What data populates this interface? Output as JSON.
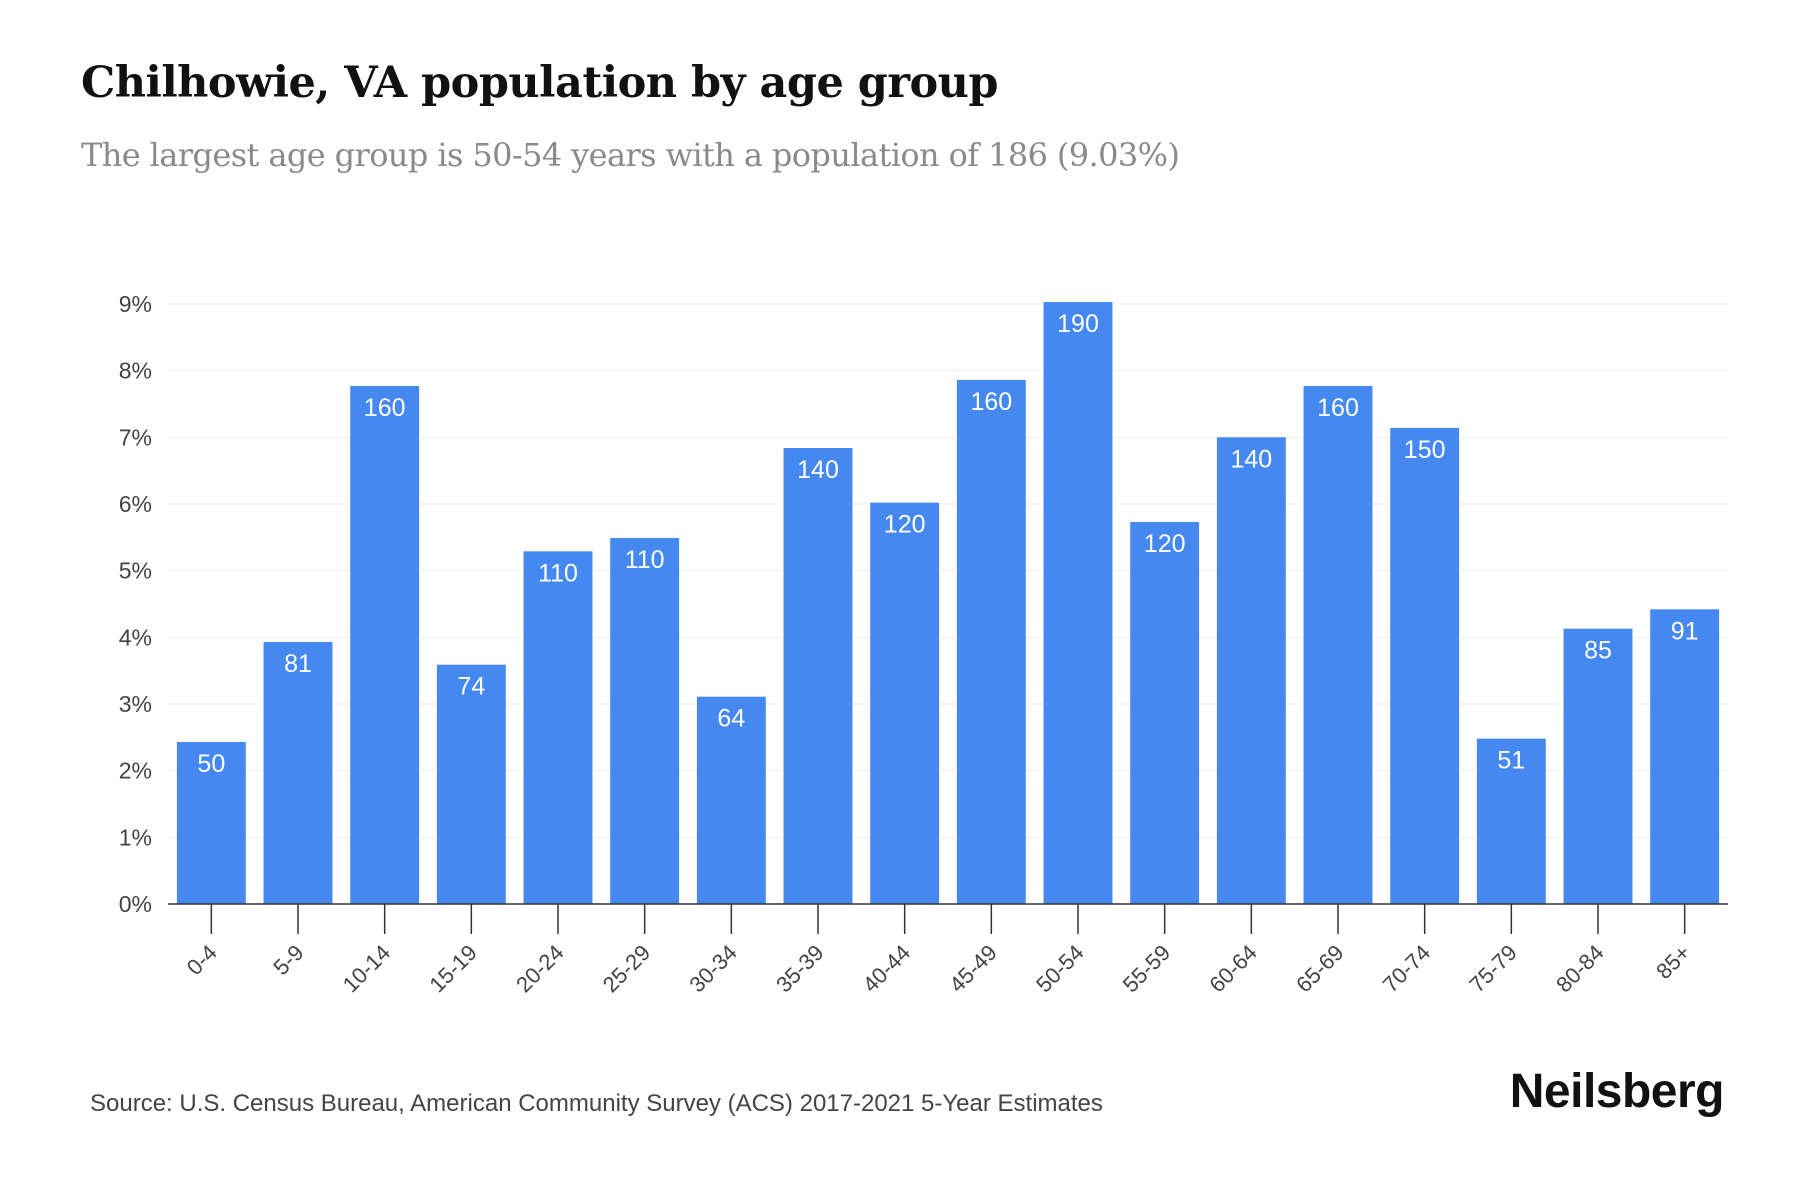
{
  "header": {
    "title": "Chilhowie, VA population by age group",
    "subtitle": "The largest age group is 50-54 years with a population of 186 (9.03%)"
  },
  "footer": {
    "source": "Source: U.S. Census Bureau, American Community Survey (ACS) 2017-2021 5-Year Estimates",
    "brand": "Neilsberg"
  },
  "colors": {
    "bar": "#4589f0",
    "grid": "#eeeeee",
    "axis": "#333333"
  },
  "chart_data": {
    "type": "bar",
    "title": "Chilhowie, VA population by age group",
    "subtitle": "The largest age group is 50-54 years with a population of 186 (9.03%)",
    "categories": [
      "0-4",
      "5-9",
      "10-14",
      "15-19",
      "20-24",
      "25-29",
      "30-34",
      "35-39",
      "40-44",
      "45-49",
      "50-54",
      "55-59",
      "60-64",
      "65-69",
      "70-74",
      "75-79",
      "80-84",
      "85+"
    ],
    "values": [
      2.43,
      3.93,
      7.77,
      3.59,
      5.29,
      5.49,
      3.11,
      6.84,
      6.02,
      7.86,
      9.03,
      5.73,
      7.0,
      7.77,
      7.14,
      2.48,
      4.13,
      4.42
    ],
    "labels": [
      "50",
      "81",
      "160",
      "74",
      "110",
      "110",
      "64",
      "140",
      "120",
      "160",
      "190",
      "120",
      "140",
      "160",
      "150",
      "51",
      "85",
      "91"
    ],
    "yticks": [
      "0%",
      "1%",
      "2%",
      "3%",
      "4%",
      "5%",
      "6%",
      "7%",
      "8%",
      "9%"
    ],
    "ylim": [
      0,
      9
    ],
    "grid": true,
    "legend": "none"
  }
}
